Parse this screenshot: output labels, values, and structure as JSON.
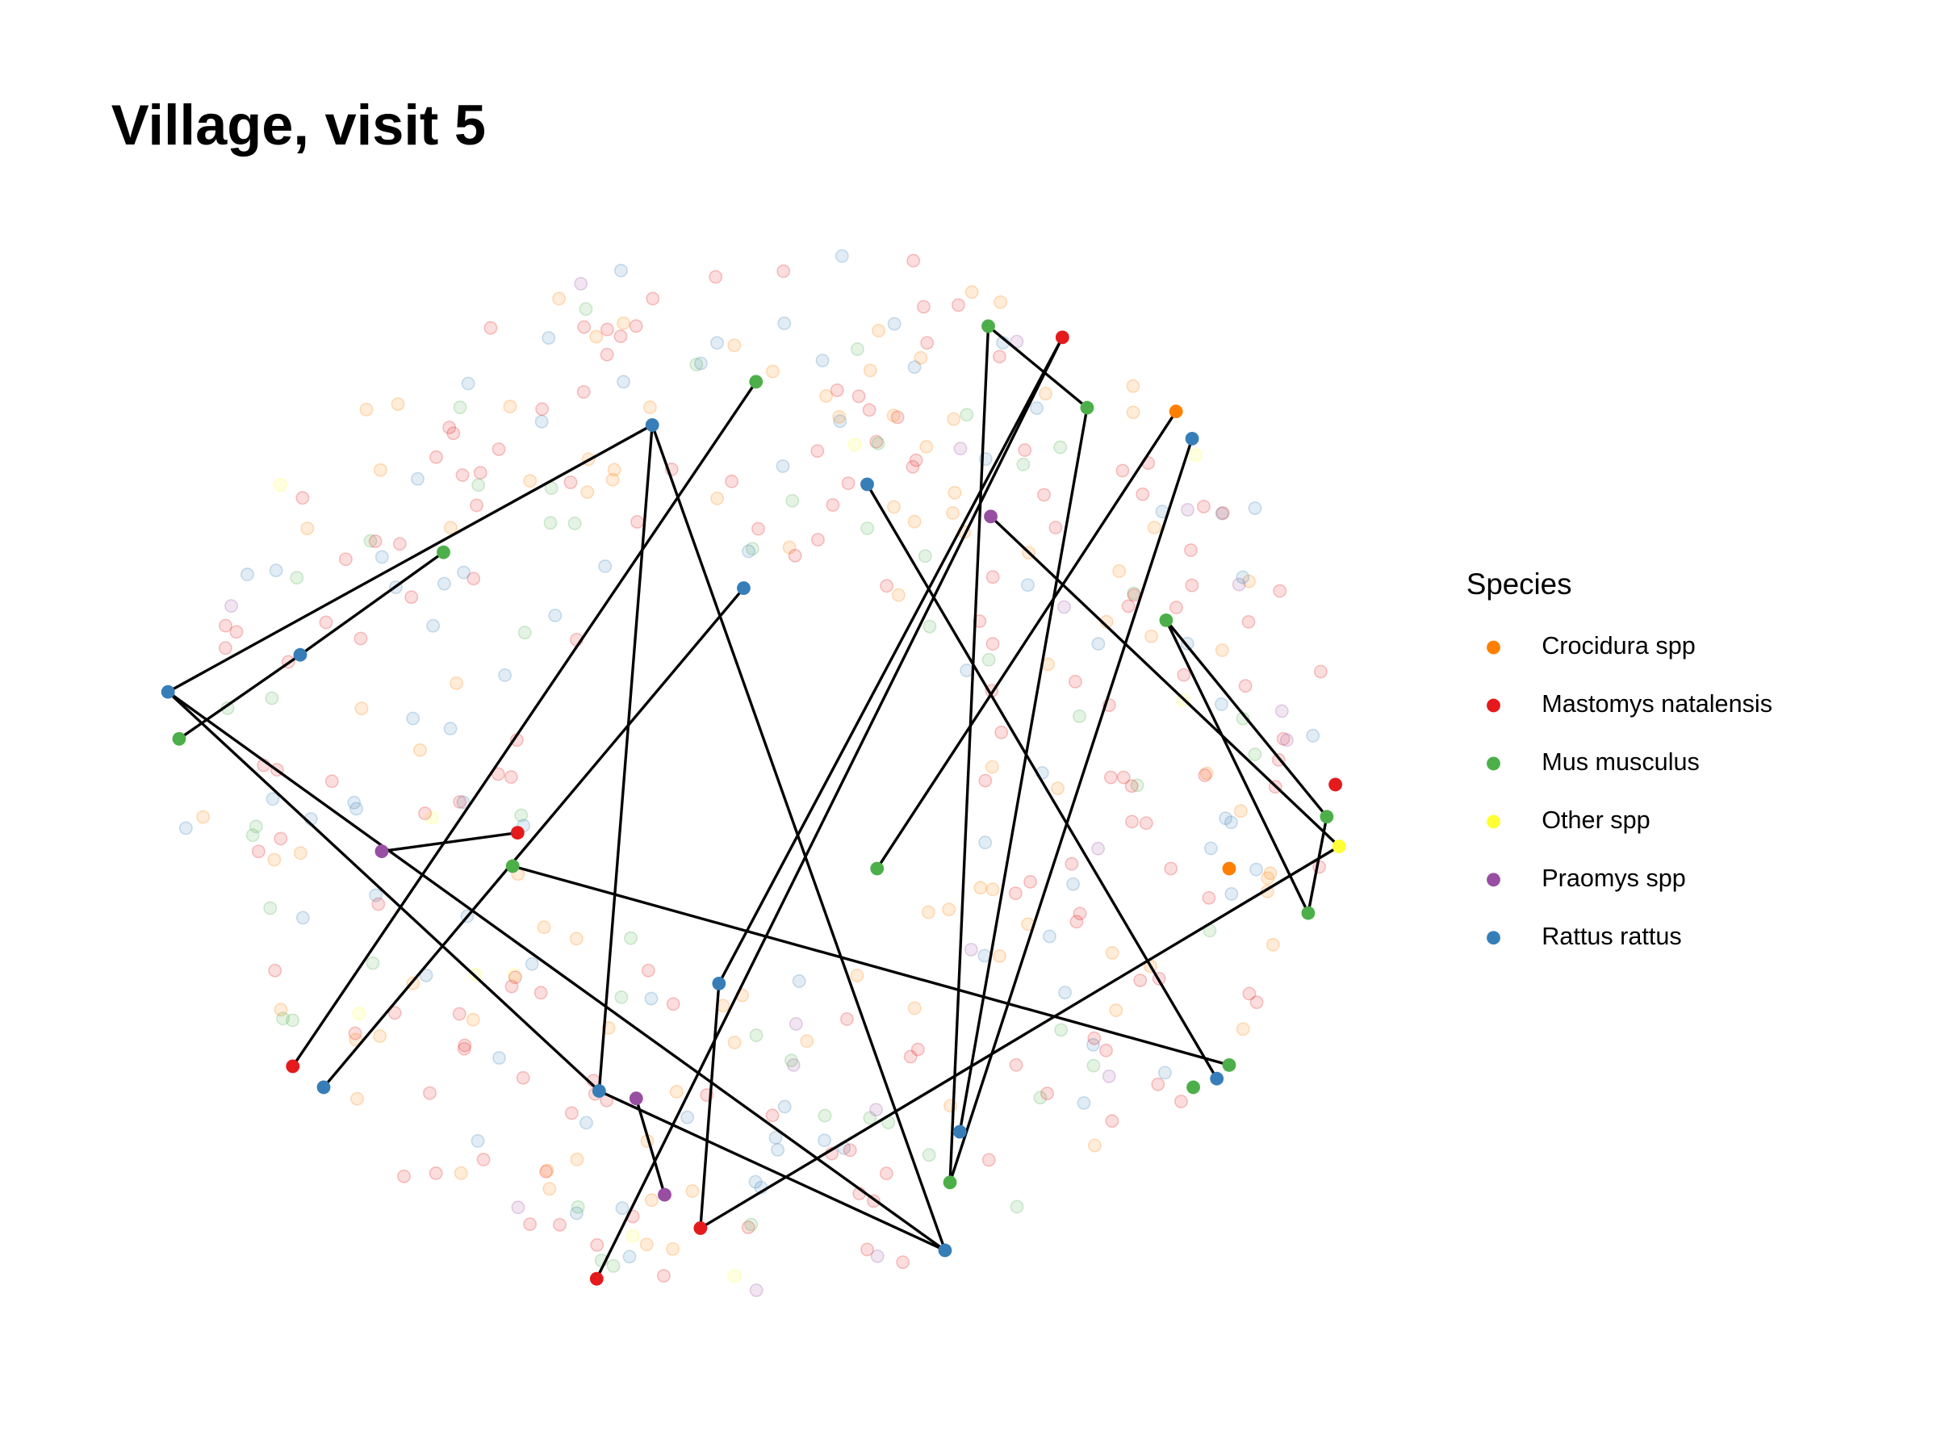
{
  "title": "Village, visit 5",
  "legend": {
    "title": "Species",
    "items": [
      {
        "label": "Crocidura spp",
        "color": "#ff7f00"
      },
      {
        "label": "Mastomys natalensis",
        "color": "#e41a1c"
      },
      {
        "label": "Mus musculus",
        "color": "#4daf4a"
      },
      {
        "label": "Other spp",
        "color": "#ffff33"
      },
      {
        "label": "Praomys spp",
        "color": "#984ea3"
      },
      {
        "label": "Rattus rattus",
        "color": "#377eb8"
      }
    ]
  }
}
